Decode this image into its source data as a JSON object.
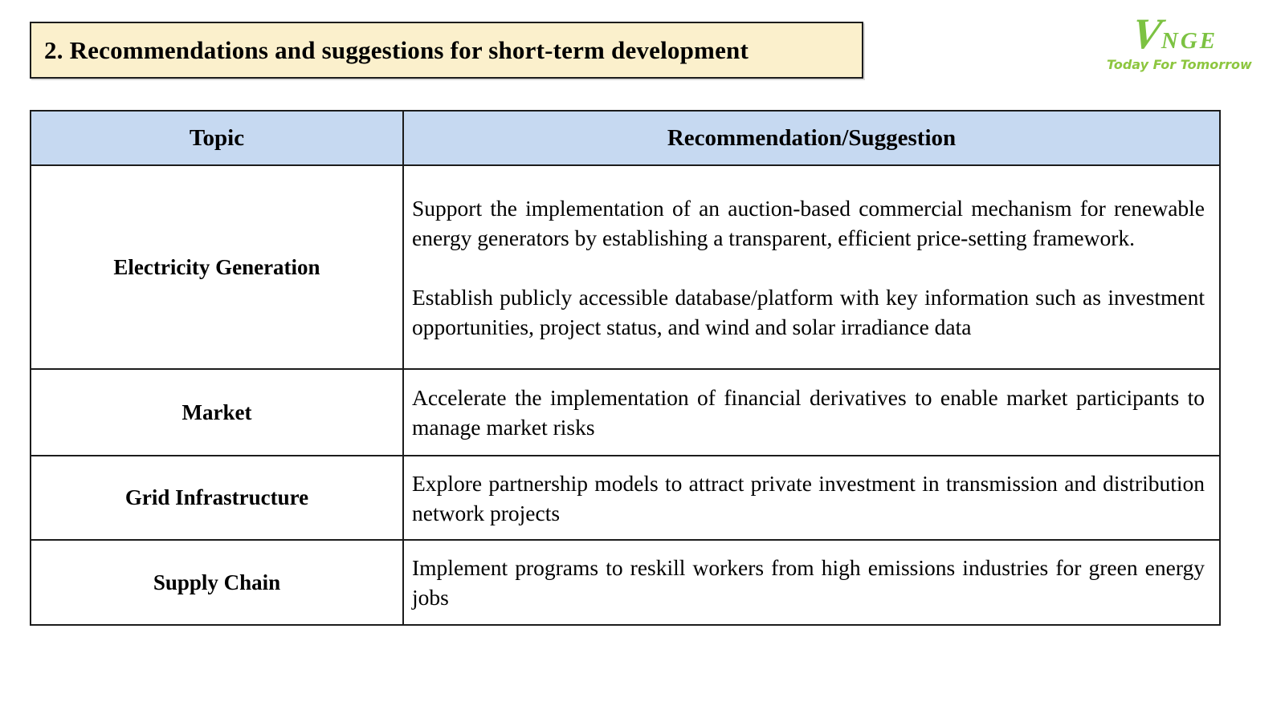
{
  "slide": {
    "title": "2. Recommendations and suggestions for short-term development"
  },
  "logo": {
    "v": "V",
    "nge": "NGE",
    "tagline": "Today For Tomorrow"
  },
  "table": {
    "headers": [
      "Topic",
      "Recommendation/Suggestion"
    ],
    "rows": [
      {
        "topic": "Electricity Generation",
        "paragraphs": [
          "Support the implementation of an auction-based commercial mechanism for renewable energy generators by establishing a transparent, efficient price-setting framework.",
          "Establish publicly accessible database/platform with key information such as investment opportunities, project status, and wind and solar irradiance data"
        ]
      },
      {
        "topic": "Market",
        "paragraphs": [
          "Accelerate the implementation of financial derivatives to enable market participants to manage market risks"
        ]
      },
      {
        "topic": "Grid Infrastructure",
        "paragraphs": [
          "Explore partnership models to attract private investment in transmission and distribution network projects"
        ]
      },
      {
        "topic": "Supply Chain",
        "paragraphs": [
          "Implement programs to reskill workers from high emissions industries for green energy jobs"
        ]
      }
    ]
  },
  "colors": {
    "title_bg": "#fbf0cc",
    "header_bg": "#c6d9f1",
    "border": "#1c1c1c",
    "logo_green": "#7cc242",
    "tagline_green": "#8dc63f"
  }
}
